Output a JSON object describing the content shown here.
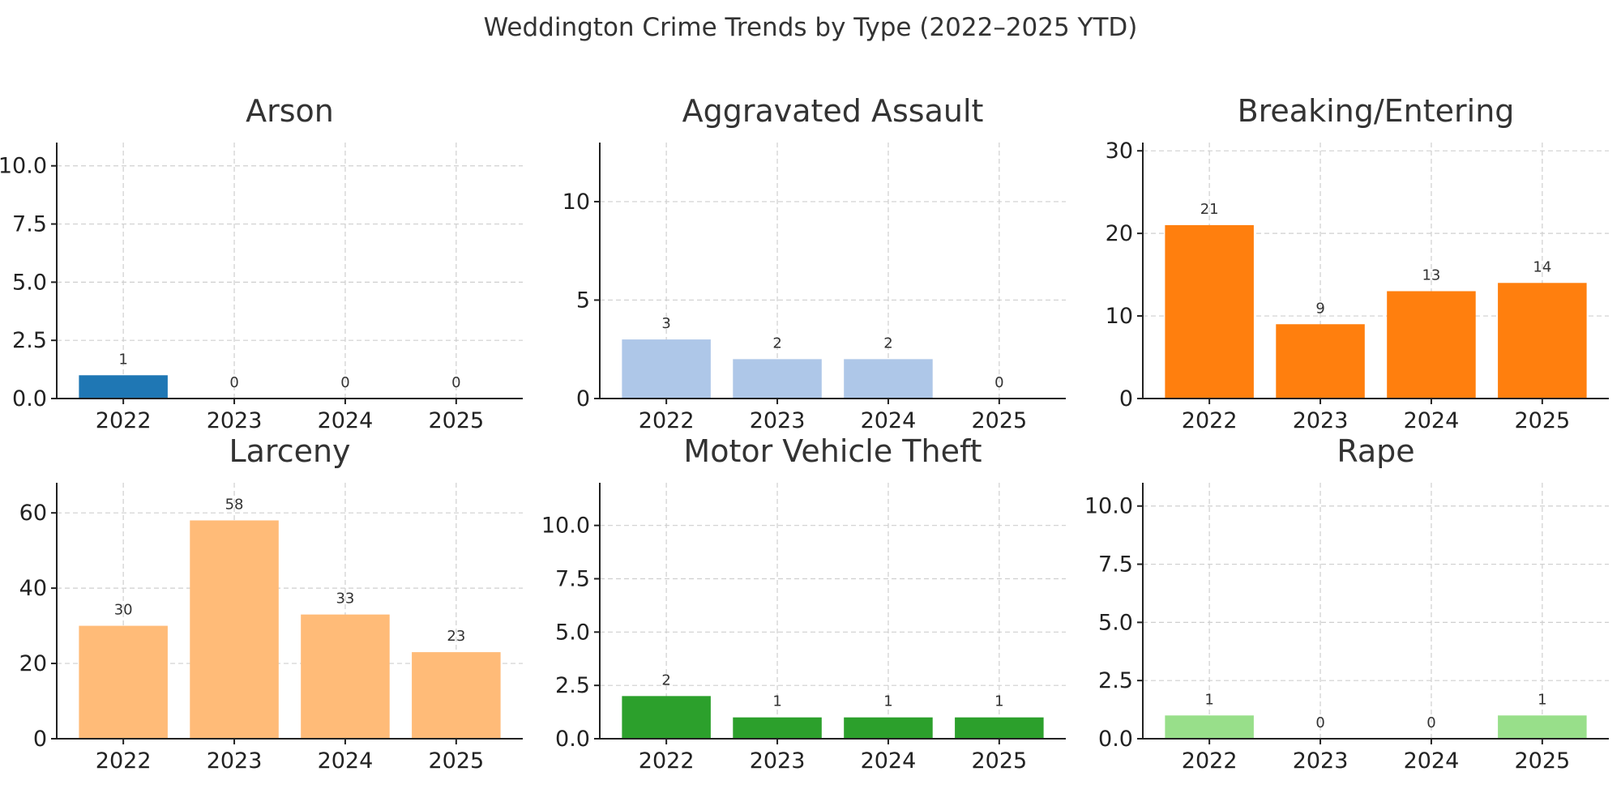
{
  "figure": {
    "title": "Weddington Crime Trends by Type (2022–2025 YTD)"
  },
  "chart_data": [
    {
      "type": "bar",
      "title": "Arson",
      "categories": [
        "2022",
        "2023",
        "2024",
        "2025"
      ],
      "values": [
        1,
        0,
        0,
        0
      ],
      "color": "#1f77b4",
      "ylim": [
        0,
        11
      ],
      "yticks": [
        0,
        2.5,
        5,
        7.5,
        10
      ],
      "ytick_labels": [
        "0.0",
        "2.5",
        "5.0",
        "7.5",
        "10.0"
      ],
      "grid": true
    },
    {
      "type": "bar",
      "title": "Aggravated Assault",
      "categories": [
        "2022",
        "2023",
        "2024",
        "2025"
      ],
      "values": [
        3,
        2,
        2,
        0
      ],
      "color": "#aec7e8",
      "ylim": [
        0,
        13
      ],
      "yticks": [
        0,
        5,
        10
      ],
      "ytick_labels": [
        "0",
        "5",
        "10"
      ],
      "grid": true
    },
    {
      "type": "bar",
      "title": "Breaking/Entering",
      "categories": [
        "2022",
        "2023",
        "2024",
        "2025"
      ],
      "values": [
        21,
        9,
        13,
        14
      ],
      "color": "#ff7f0e",
      "ylim": [
        0,
        31
      ],
      "yticks": [
        0,
        10,
        20,
        30
      ],
      "ytick_labels": [
        "0",
        "10",
        "20",
        "30"
      ],
      "grid": true
    },
    {
      "type": "bar",
      "title": "Larceny",
      "categories": [
        "2022",
        "2023",
        "2024",
        "2025"
      ],
      "values": [
        30,
        58,
        33,
        23
      ],
      "color": "#ffbb78",
      "ylim": [
        0,
        68
      ],
      "yticks": [
        0,
        20,
        40,
        60
      ],
      "ytick_labels": [
        "0",
        "20",
        "40",
        "60"
      ],
      "grid": true
    },
    {
      "type": "bar",
      "title": "Motor Vehicle Theft",
      "categories": [
        "2022",
        "2023",
        "2024",
        "2025"
      ],
      "values": [
        2,
        1,
        1,
        1
      ],
      "color": "#2ca02c",
      "ylim": [
        0,
        12
      ],
      "yticks": [
        0,
        2.5,
        5,
        7.5,
        10
      ],
      "ytick_labels": [
        "0.0",
        "2.5",
        "5.0",
        "7.5",
        "10.0"
      ],
      "grid": true
    },
    {
      "type": "bar",
      "title": "Rape",
      "categories": [
        "2022",
        "2023",
        "2024",
        "2025"
      ],
      "values": [
        1,
        0,
        0,
        1
      ],
      "color": "#98df8a",
      "ylim": [
        0,
        11
      ],
      "yticks": [
        0,
        2.5,
        5,
        7.5,
        10
      ],
      "ytick_labels": [
        "0.0",
        "2.5",
        "5.0",
        "7.5",
        "10.0"
      ],
      "grid": true
    }
  ]
}
